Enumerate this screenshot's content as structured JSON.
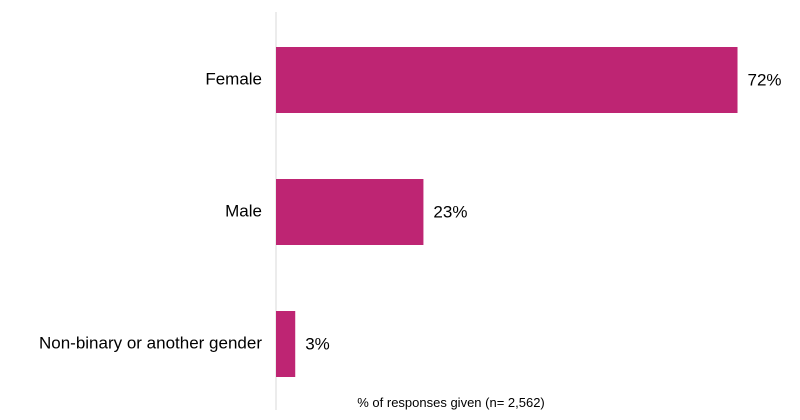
{
  "chart_data": {
    "type": "bar",
    "orientation": "horizontal",
    "title": "",
    "xlabel": "% of responses given (n= 2,562)",
    "ylabel": "",
    "categories": [
      "Female",
      "Male",
      "Non-binary or another gender"
    ],
    "values": [
      72,
      23,
      3
    ],
    "value_labels": [
      "72%",
      "23%",
      "3%"
    ],
    "xlim": [
      0,
      100
    ],
    "grid": false,
    "legend": "none",
    "bar_color": "#BE2573",
    "axis_color": "#D9D9D9"
  }
}
